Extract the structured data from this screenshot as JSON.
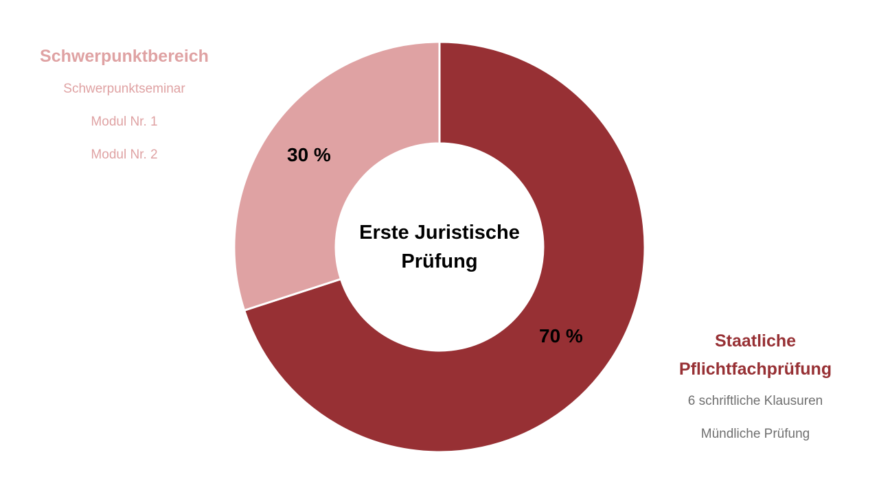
{
  "chart_data": {
    "type": "pie",
    "donut": true,
    "center_label": "Erste Juristische Prüfung",
    "slices": [
      {
        "label": "Staatliche Pflichtfachprüfung",
        "value": 70,
        "display": "70 %",
        "color": "#973034"
      },
      {
        "label": "Schwerpunktbereich",
        "value": 30,
        "display": "30 %",
        "color": "#dfa2a3"
      }
    ],
    "legends": {
      "left": {
        "title": "Schwerpunktbereich",
        "items": [
          "Schwerpunktseminar",
          "Modul Nr. 1",
          "Modul Nr. 2"
        ],
        "color": "#dfa2a3"
      },
      "right": {
        "title_line1": "Staatliche",
        "title_line2": "Pflichtfachprüfung",
        "items": [
          "6 schriftliche Klausuren",
          "Mündliche Prüfung"
        ],
        "title_color": "#973034",
        "item_color": "#6f6f6f"
      }
    }
  }
}
